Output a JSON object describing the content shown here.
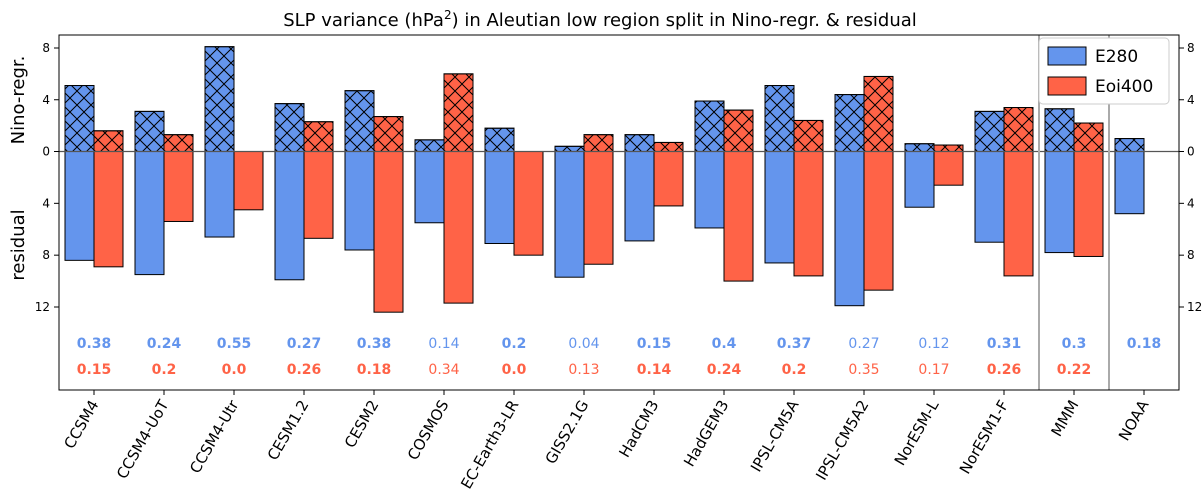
{
  "chart_data": {
    "type": "bar",
    "title_main": "SLP variance (hPa",
    "title_sup": "2",
    "title_rest": ") in Aleutian low region split in Nino-regr. & residual",
    "ylabel_top": "Nino-regr.",
    "ylabel_bottom": "residual",
    "ylim_top": [
      0,
      9
    ],
    "ylim_bottom": [
      0,
      18.8
    ],
    "yticks_top": [
      "0",
      "4",
      "8"
    ],
    "yticks_bottom": [
      "4",
      "8",
      "12"
    ],
    "grid": false,
    "legend_position": "top-right",
    "categories": [
      "CCSM4",
      "CCSM4-UoT",
      "CCSM4-Utr",
      "CESM1.2",
      "CESM2",
      "COSMOS",
      "EC-Earth3-LR",
      "GISS2.1G",
      "HadCM3",
      "HadGEM3",
      "IPSL-CM5A",
      "IPSL-CM5A2",
      "NorESM-L",
      "NorESM1-F",
      "MMM",
      "NOAA"
    ],
    "series": [
      {
        "name": "E280",
        "color": "#6495ed",
        "nino_regr": [
          5.1,
          3.1,
          8.1,
          3.7,
          4.7,
          0.9,
          1.8,
          0.4,
          1.3,
          3.9,
          5.1,
          4.4,
          0.6,
          3.1,
          3.3,
          1.0
        ],
        "residual": [
          8.4,
          9.5,
          6.6,
          9.9,
          7.6,
          5.5,
          7.1,
          9.7,
          6.9,
          5.9,
          8.6,
          11.9,
          4.3,
          7.0,
          7.8,
          4.8
        ],
        "ratio": [
          "0.38",
          "0.24",
          "0.55",
          "0.27",
          "0.38",
          "0.14",
          "0.2",
          "0.04",
          "0.15",
          "0.4",
          "0.37",
          "0.27",
          "0.12",
          "0.31",
          "0.3",
          "0.18"
        ],
        "ratio_bold": [
          true,
          true,
          true,
          true,
          true,
          false,
          true,
          false,
          true,
          true,
          true,
          false,
          false,
          true,
          true,
          true
        ]
      },
      {
        "name": "Eoi400",
        "color": "#ff6347",
        "nino_regr": [
          1.6,
          1.3,
          0.0,
          2.3,
          2.7,
          6.0,
          0.0,
          1.3,
          0.7,
          3.2,
          2.4,
          5.8,
          0.5,
          3.4,
          2.2,
          null
        ],
        "residual": [
          8.9,
          5.4,
          4.5,
          6.7,
          12.4,
          11.7,
          8.0,
          8.7,
          4.2,
          10.0,
          9.6,
          10.7,
          2.6,
          9.6,
          8.1,
          null
        ],
        "ratio": [
          "0.15",
          "0.2",
          "0.0",
          "0.26",
          "0.18",
          "0.34",
          "0.0",
          "0.13",
          "0.14",
          "0.24",
          "0.2",
          "0.35",
          "0.17",
          "0.26",
          "0.22",
          ""
        ],
        "ratio_bold": [
          true,
          true,
          true,
          true,
          true,
          false,
          true,
          false,
          true,
          true,
          true,
          false,
          false,
          true,
          true,
          false
        ]
      }
    ]
  }
}
